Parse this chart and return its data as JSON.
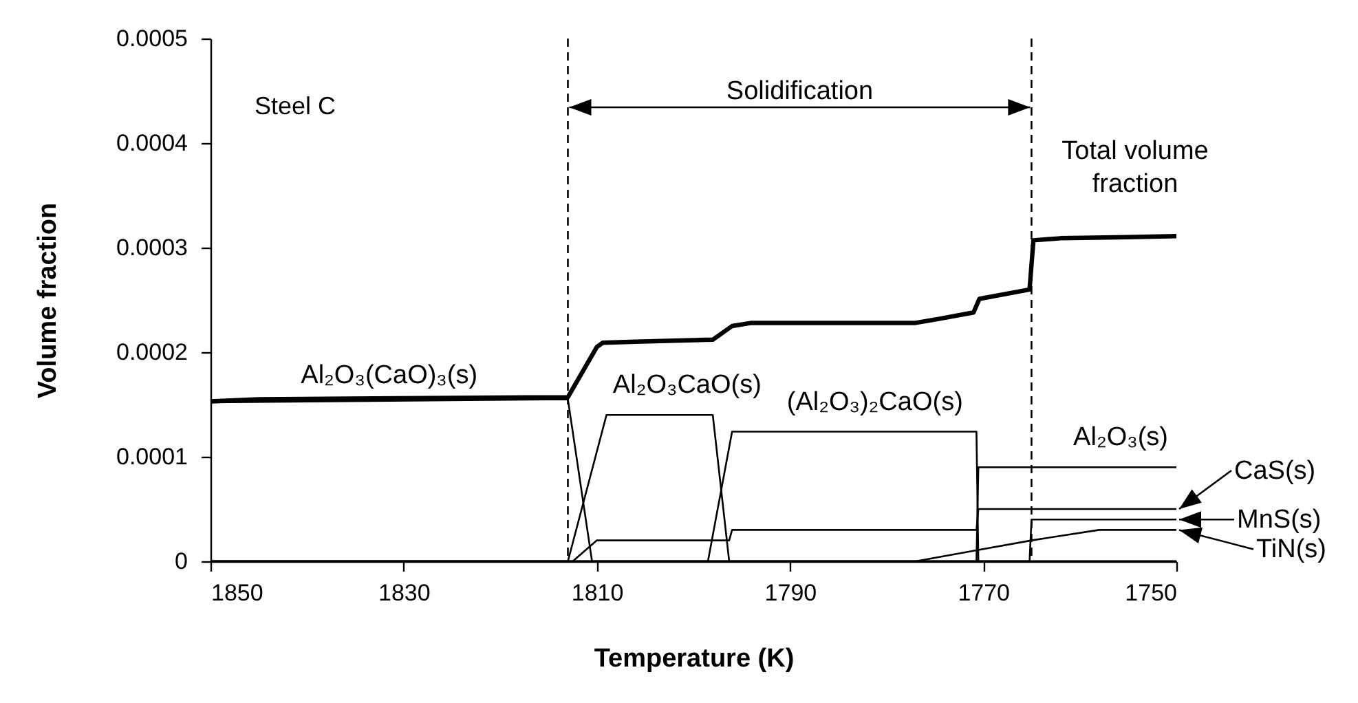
{
  "chart_data": {
    "type": "line",
    "xlabel": "Temperature (K)",
    "ylabel": "Volume fraction",
    "xlim": [
      1850,
      1750
    ],
    "xticks": [
      1850,
      1830,
      1810,
      1790,
      1770,
      1750
    ],
    "ylim": [
      0,
      0.0005
    ],
    "yticks": [
      0,
      0.0001,
      0.0002,
      0.0003,
      0.0004,
      0.0005
    ],
    "grid": false,
    "legend": "right",
    "series": [
      {
        "name": "Total volume fraction",
        "color": "#000000",
        "x": [
          1850,
          1845,
          1813,
          1810,
          1809.4,
          1806,
          1798,
          1796,
          1794,
          1777,
          1774.5,
          1771,
          1770.4,
          1765.2,
          1764.8,
          1762,
          1755,
          1750
        ],
        "values": [
          0.000153,
          0.000155,
          0.000157,
          0.000205,
          0.000209,
          0.00021,
          0.000212,
          0.000225,
          0.000228,
          0.000228,
          0.000232,
          0.000238,
          0.000251,
          0.00026,
          0.000307,
          0.000309,
          0.00031,
          0.000311
        ]
      },
      {
        "name": "Al₂O₃(CaO)₃(s)",
        "color": "#000000",
        "x": [
          1850,
          1813,
          1810.5,
          1750
        ],
        "values": [
          0.000152,
          0.000155,
          0,
          0
        ]
      },
      {
        "name": "Al₂O₃CaO(s)",
        "color": "#000000",
        "x": [
          1850,
          1813,
          1809,
          1798,
          1796.3,
          1750
        ],
        "values": [
          0,
          0,
          0.00014,
          0.00014,
          0,
          0
        ]
      },
      {
        "name": "(Al₂O₃)₂CaO(s)",
        "color": "#000000",
        "x": [
          1850,
          1798.5,
          1796,
          1770.7,
          1770.5,
          1750
        ],
        "values": [
          0,
          0,
          0.000124,
          0.000124,
          0,
          0
        ]
      },
      {
        "name": "Al₂O₃(s)",
        "color": "#000000",
        "x": [
          1850,
          1770.7,
          1770.5,
          1750
        ],
        "values": [
          0,
          0,
          9e-05,
          9e-05
        ]
      },
      {
        "name": "CaS(s)",
        "color": "#000000",
        "x": [
          1850,
          1812.5,
          1810,
          1796.3,
          1796,
          1770.7,
          1770.5,
          1750
        ],
        "values": [
          0,
          0,
          2e-05,
          2e-05,
          3e-05,
          3e-05,
          5e-05,
          5e-05
        ]
      },
      {
        "name": "MnS(s)",
        "color": "#000000",
        "x": [
          1850,
          1765.2,
          1765,
          1750
        ],
        "values": [
          0,
          0,
          4e-05,
          4e-05
        ]
      },
      {
        "name": "TiN(s)",
        "color": "#000000",
        "x": [
          1850,
          1777,
          1771,
          1765,
          1758,
          1750
        ],
        "values": [
          0,
          0,
          1e-05,
          2e-05,
          3e-05,
          3e-05
        ]
      }
    ],
    "ref_lines": [
      {
        "axis": "x",
        "value": 1813,
        "line_style": "dashed",
        "color": "#000000"
      },
      {
        "axis": "x",
        "value": 1765,
        "line_style": "dashed",
        "color": "#000000"
      }
    ],
    "annotations": [
      "Steel C",
      "Solidification"
    ]
  }
}
